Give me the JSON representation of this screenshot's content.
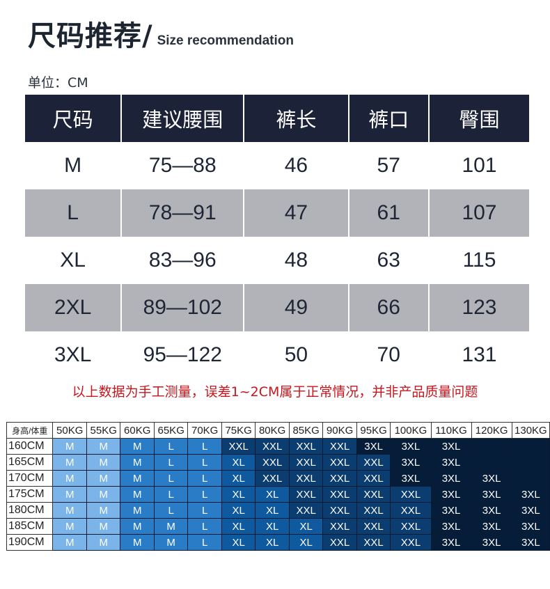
{
  "header": {
    "title_zh": "尺码推荐/",
    "title_en": "Size recommendation",
    "unit": "单位：CM"
  },
  "size_table": {
    "columns": [
      "尺码",
      "建议腰围",
      "裤长",
      "裤口",
      "臀围"
    ],
    "rows": [
      [
        "M",
        "75—88",
        "46",
        "57",
        "101"
      ],
      [
        "L",
        "78—91",
        "47",
        "61",
        "107"
      ],
      [
        "XL",
        "83—96",
        "48",
        "63",
        "115"
      ],
      [
        "2XL",
        "89—102",
        "49",
        "66",
        "123"
      ],
      [
        "3XL",
        "95—122",
        "50",
        "70",
        "131"
      ]
    ],
    "colors": {
      "header_bg": "#1c2238",
      "alt_row_bg": "#b2b3b8"
    }
  },
  "note": "以上数据为手工测量，误差1~2CM属于正常情况，并非产品质量问题",
  "grid": {
    "corner": "身高/体重",
    "weights": [
      "50KG",
      "55KG",
      "60KG",
      "65KG",
      "70KG",
      "75KG",
      "80KG",
      "85KG",
      "90KG",
      "95KG",
      "100KG",
      "110KG",
      "120KG",
      "130KG"
    ],
    "rows": [
      {
        "height": "160CM",
        "cells": [
          "M",
          "M",
          "M",
          "L",
          "L",
          "XXL",
          "XXL",
          "XXL",
          "XXL",
          "3XL",
          "3XL",
          "3XL",
          "",
          ""
        ]
      },
      {
        "height": "165CM",
        "cells": [
          "M",
          "M",
          "M",
          "L",
          "L",
          "XL",
          "XXL",
          "XXL",
          "XXL",
          "XXL",
          "3XL",
          "3XL",
          "",
          ""
        ]
      },
      {
        "height": "170CM",
        "cells": [
          "M",
          "M",
          "M",
          "L",
          "L",
          "XL",
          "XXL",
          "XXL",
          "XXL",
          "XXL",
          "3XL",
          "3XL",
          "3XL",
          ""
        ]
      },
      {
        "height": "175CM",
        "cells": [
          "M",
          "M",
          "M",
          "L",
          "L",
          "XL",
          "XL",
          "XXL",
          "XXL",
          "XXL",
          "XXL",
          "3XL",
          "3XL",
          "3XL"
        ]
      },
      {
        "height": "180CM",
        "cells": [
          "M",
          "M",
          "M",
          "L",
          "L",
          "XL",
          "XL",
          "XXL",
          "XXL",
          "XXL",
          "XXL",
          "3XL",
          "3XL",
          "3XL"
        ]
      },
      {
        "height": "185CM",
        "cells": [
          "M",
          "M",
          "M",
          "M",
          "L",
          "XL",
          "XL",
          "XL",
          "XXL",
          "XXL",
          "XXL",
          "3XL",
          "3XL",
          "3XL"
        ]
      },
      {
        "height": "190CM",
        "cells": [
          "M",
          "M",
          "M",
          "M",
          "L",
          "XL",
          "XL",
          "XL",
          "XXL",
          "XXL",
          "XXL",
          "3XL",
          "3XL",
          "3XL"
        ]
      }
    ],
    "colors": {
      "light": "#7ab4e8",
      "medium": "#2b7cc6",
      "XL": "#0f5a9f",
      "XXL": "#0b3d70",
      "3XL": "#061d3a",
      "empty": "#061d3a"
    }
  }
}
